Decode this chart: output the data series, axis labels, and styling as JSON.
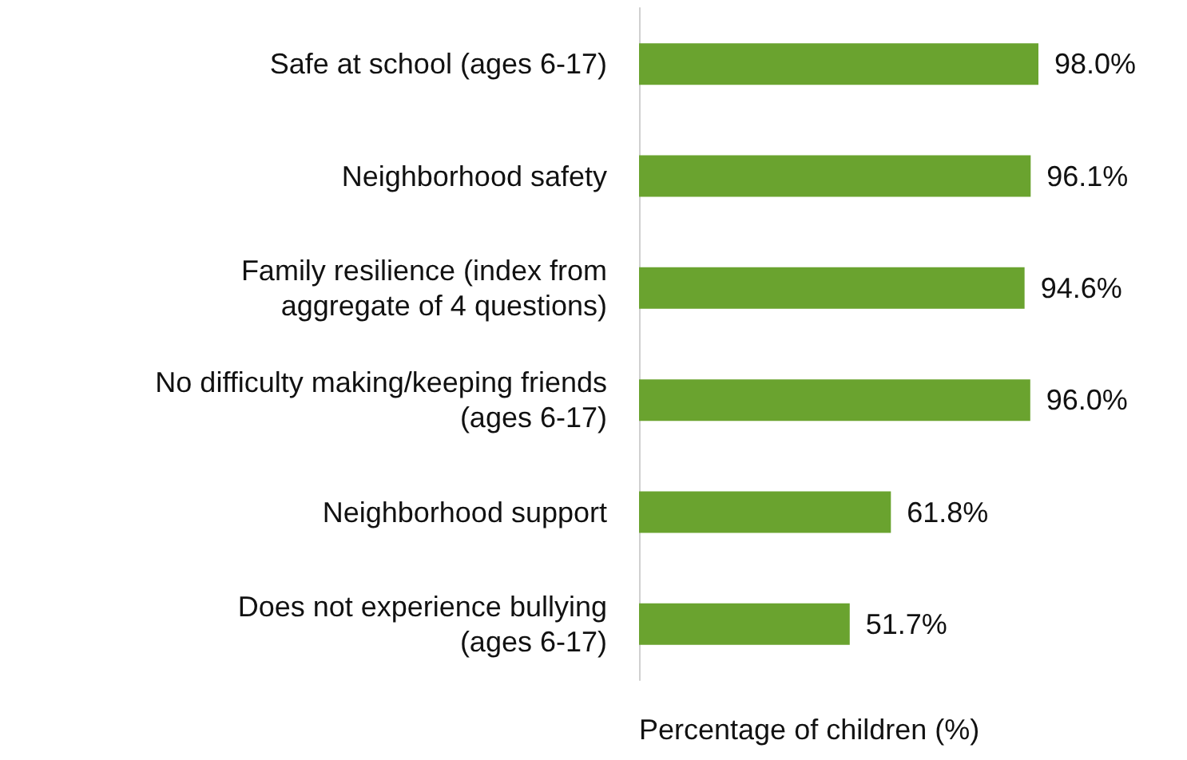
{
  "chart_data": {
    "type": "bar",
    "orientation": "horizontal",
    "xlabel": "Percentage of children (%)",
    "categories": [
      "Safe at school (ages 6-17)",
      "Neighborhood safety",
      "Family resilience (index from\naggregate of 4 questions)",
      "No difficulty making/keeping friends\n(ages 6-17)",
      "Neighborhood support",
      "Does not experience bullying\n(ages 6-17)"
    ],
    "values": [
      98.0,
      96.1,
      94.6,
      96.0,
      61.8,
      51.7
    ],
    "value_labels": [
      "98.0%",
      "96.1%",
      "94.6%",
      "96.0%",
      "61.8%",
      "51.7%"
    ],
    "color": "#6aa32f",
    "grid": false
  }
}
